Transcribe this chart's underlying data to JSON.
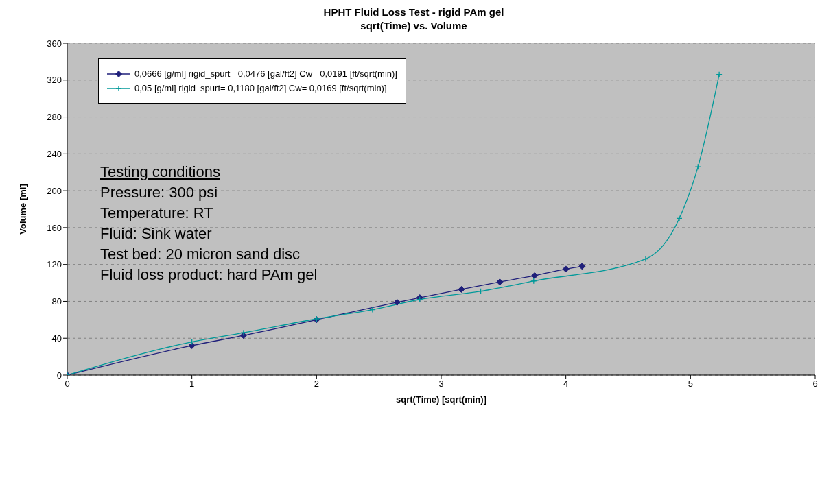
{
  "chart_data": {
    "type": "line",
    "title": "HPHT Fluid Loss Test - rigid PAm gel",
    "subtitle": "sqrt(Time) vs. Volume",
    "xlabel": "sqrt(Time) [sqrt(min)]",
    "ylabel": "Volume [ml]",
    "xlim": [
      0,
      6
    ],
    "xticks": [
      0,
      1,
      2,
      3,
      4,
      5,
      6
    ],
    "ylim": [
      0,
      360
    ],
    "yticks": [
      0,
      40,
      80,
      120,
      160,
      200,
      240,
      280,
      320,
      360
    ],
    "grid": "y",
    "legend": "top left",
    "line_style": "solid",
    "series": [
      {
        "name": "0,0666 [g/ml] rigid_spurt= 0,0476 [gal/ft2] Cw= 0,0191 [ft/sqrt(min)]",
        "color": "#1f1f7a",
        "marker": "diamond",
        "x": [
          0,
          1,
          1.414,
          2,
          2.646,
          2.828,
          3.162,
          3.47,
          3.75,
          4,
          4.13
        ],
        "values": [
          0,
          32,
          43,
          60,
          79,
          84,
          93,
          101,
          108,
          115,
          118
        ]
      },
      {
        "name": "0,05 [g/ml] rigid_spurt= 0,1180 [gal/ft2] Cw= 0,0169 [ft/sqrt(min)]",
        "color": "#009999",
        "marker": "cross",
        "x": [
          0,
          1,
          1.414,
          2,
          2.449,
          2.828,
          3.317,
          3.742,
          4.64,
          4.91,
          5.06,
          5.23
        ],
        "values": [
          0,
          36,
          46,
          61,
          71,
          82,
          91,
          102,
          126,
          170,
          226,
          326
        ]
      }
    ],
    "annotations": [
      "Testing conditions",
      "Pressure: 300 psi",
      "Temperature: RT",
      "Fluid: Sink water",
      "Test bed: 20 micron sand disc",
      "Fluid loss product: hard PAm gel"
    ]
  }
}
